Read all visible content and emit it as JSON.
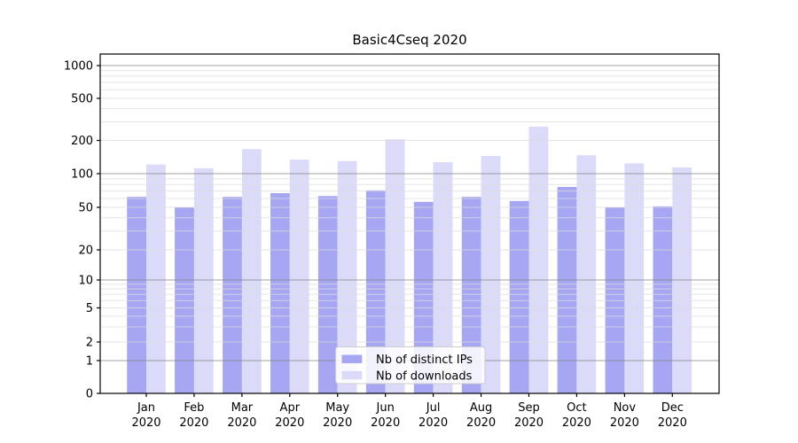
{
  "title": "Basic4Cseq 2020",
  "chart_data": {
    "type": "bar",
    "title": "Basic4Cseq 2020",
    "xlabel": "",
    "ylabel": "",
    "scale": "quasi-log (log above 1, linear 0 to 1)",
    "categories": [
      "Jan 2020",
      "Feb 2020",
      "Mar 2020",
      "Apr 2020",
      "May 2020",
      "Jun 2020",
      "Jul 2020",
      "Aug 2020",
      "Sep 2020",
      "Oct 2020",
      "Nov 2020",
      "Dec 2020"
    ],
    "series": [
      {
        "name": "Nb of distinct IPs",
        "color": "#a6a6f2",
        "values": [
          62,
          50,
          62,
          67,
          63,
          71,
          56,
          62,
          57,
          76,
          50,
          51
        ]
      },
      {
        "name": "Nb of downloads",
        "color": "#dbdbf9",
        "values": [
          121,
          112,
          167,
          134,
          130,
          205,
          127,
          145,
          270,
          147,
          124,
          114
        ]
      }
    ],
    "yticks": [
      0,
      1,
      2,
      5,
      10,
      20,
      50,
      100,
      200,
      500,
      1000
    ],
    "ylim": [
      0,
      1300
    ],
    "grid": "horizontal, major (1,10,100,1000) dark + minor light, drawn over bars",
    "legend_position": "lower center"
  },
  "colors": {
    "major_grid": "#8a8a8a",
    "minor_grid": "#dddddd",
    "axis": "#000000",
    "legend_border": "#cccccc"
  }
}
